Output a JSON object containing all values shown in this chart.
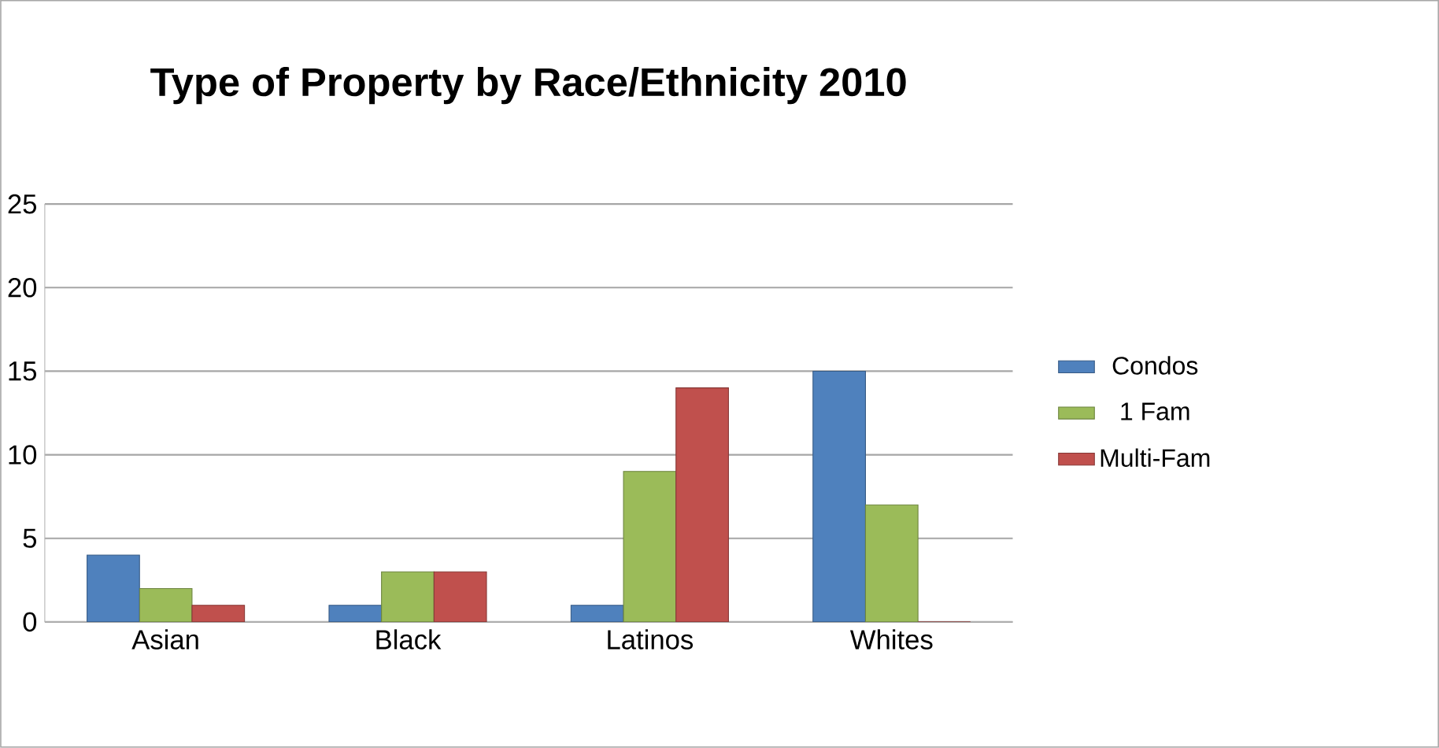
{
  "chart_data": {
    "type": "bar",
    "title": "Type of Property by Race/Ethnicity 2010",
    "categories": [
      "Asian",
      "Black",
      "Latinos",
      "Whites"
    ],
    "series": [
      {
        "name": "Condos",
        "color": "#4f81bd",
        "values": [
          4,
          1,
          1,
          15
        ]
      },
      {
        "name": "1 Fam",
        "color": "#9bbb59",
        "values": [
          2,
          3,
          9,
          7
        ]
      },
      {
        "name": "Multi-Fam",
        "color": "#c0504d",
        "values": [
          1,
          3,
          14,
          0
        ]
      }
    ],
    "ylim": [
      0,
      25
    ],
    "yticks": [
      0,
      5,
      10,
      15,
      20,
      25
    ],
    "grid": "y",
    "legend": "right"
  }
}
